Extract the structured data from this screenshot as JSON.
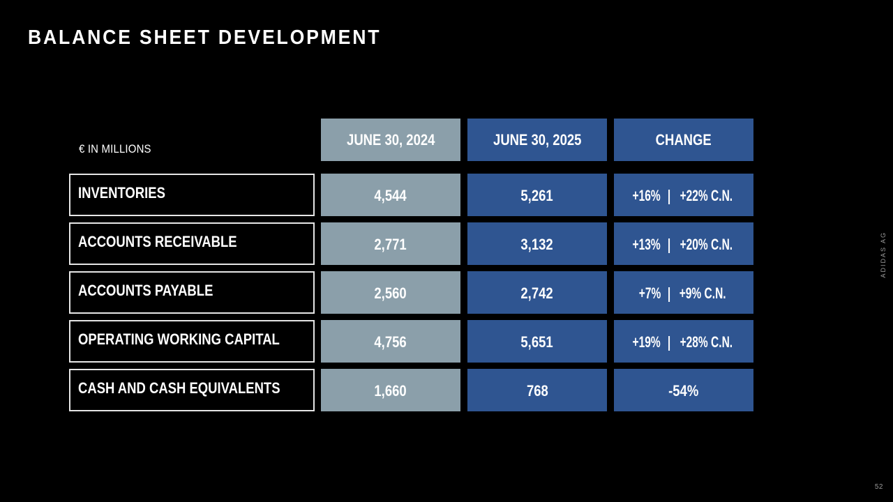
{
  "title": "BALANCE SHEET DEVELOPMENT",
  "units_label": "€ IN MILLIONS",
  "columns": {
    "c2024": "JUNE 30, 2024",
    "c2025": "JUNE 30, 2025",
    "change": "CHANGE"
  },
  "rows": [
    {
      "label": "INVENTORIES",
      "v2024": "4,544",
      "v2025": "5,261",
      "change": "+16%",
      "change_cn": "+22% C.N.",
      "sep": "|"
    },
    {
      "label": "ACCOUNTS RECEIVABLE",
      "v2024": "2,771",
      "v2025": "3,132",
      "change": "+13%",
      "change_cn": "+20% C.N.",
      "sep": "|"
    },
    {
      "label": "ACCOUNTS PAYABLE",
      "v2024": "2,560",
      "v2025": "2,742",
      "change": "+7%",
      "change_cn": "+9% C.N.",
      "sep": "|"
    },
    {
      "label": "OPERATING WORKING CAPITAL",
      "v2024": "4,756",
      "v2025": "5,651",
      "change": "+19%",
      "change_cn": "+28% C.N.",
      "sep": "|"
    },
    {
      "label": "CASH AND CASH EQUIVALENTS",
      "v2024": "1,660",
      "v2025": "768",
      "change": "-54%",
      "change_cn": "",
      "sep": ""
    }
  ],
  "side_tag": "ADIDAS AG",
  "page_number": "52",
  "colors": {
    "background": "#000000",
    "col_2024": "#8b9faa",
    "col_2025": "#2f5591",
    "col_change": "#2f5591",
    "label_border": "#e6e6e6"
  }
}
